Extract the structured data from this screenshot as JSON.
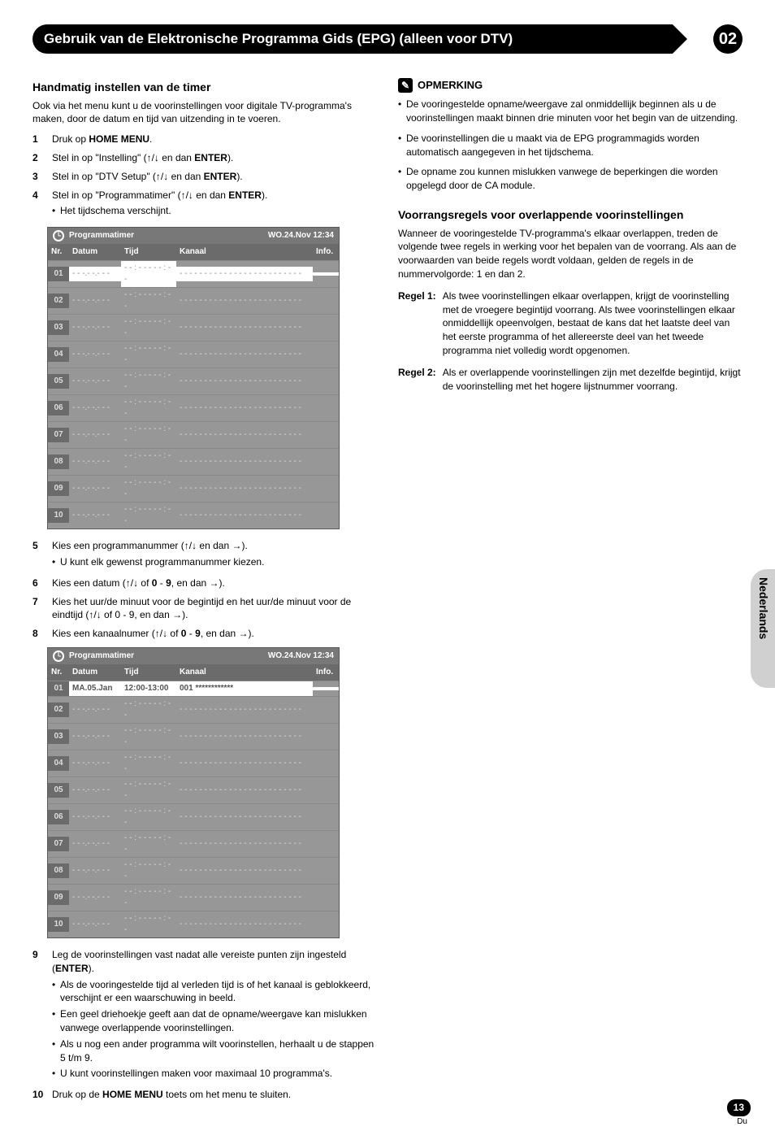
{
  "header": {
    "title": "Gebruik van de Elektronische Programma Gids (EPG) (alleen voor DTV)",
    "chapter": "02"
  },
  "side_tab": "Nederlands",
  "page_number": "13",
  "page_lang_code": "Du",
  "left": {
    "h1": "Handmatig instellen van de timer",
    "intro": "Ook via het menu kunt u de voorinstellingen voor digitale TV-programma's maken, door de datum en tijd van uitzending in te voeren.",
    "step1": "Druk op HOME MENU.",
    "step2": "Stel in op \"Instelling\" (↑/↓ en dan ENTER).",
    "step3": "Stel in op \"DTV Setup\" (↑/↓ en dan ENTER).",
    "step4": "Stel in op \"Programmatimer\" (↑/↓ en dan ENTER).",
    "step4_sub": "Het tijdschema verschijnt.",
    "step5": "Kies een programmanummer (↑/↓ en dan →).",
    "step5_sub": "U kunt elk gewenst programmanummer kiezen.",
    "step6": "Kies een datum (↑/↓ of 0 - 9, en dan →).",
    "step7": "Kies het uur/de minuut voor de begintijd en het uur/de minuut voor de eindtijd (↑/↓ of 0 - 9, en dan →).",
    "step8": "Kies een kanaalnumer (↑/↓ of 0 - 9, en dan →).",
    "step9": "Leg de voorinstellingen vast nadat alle vereiste punten zijn ingesteld (ENTER).",
    "step9_sub1": "Als de vooringestelde tijd al verleden tijd is of het kanaal is geblokkeerd, verschijnt er een waarschuwing in beeld.",
    "step9_sub2": "Een geel driehoekje geeft aan dat de opname/weergave kan mislukken vanwege overlappende voorinstellingen.",
    "step9_sub3": "Als u nog een ander programma wilt voorinstellen, herhaalt u de stappen 5 t/m 9.",
    "step9_sub4": "U kunt voorinstellingen maken voor maximaal 10 programma's.",
    "step10": "Druk op de HOME MENU toets om het menu te sluiten."
  },
  "right": {
    "note_label": "OPMERKING",
    "note1": "De vooringestelde opname/weergave zal onmiddellijk beginnen als u de voorinstellingen maakt binnen drie minuten voor het begin van de uitzending.",
    "note2": "De voorinstellingen die u maakt via de EPG programmagids worden automatisch aangegeven in het tijdschema.",
    "note3": "De opname zou kunnen mislukken vanwege de beperkingen die worden opgelegd door de CA module.",
    "h2": "Voorrangsregels voor overlappende voorinstellingen",
    "h2_body": "Wanneer de vooringestelde TV-programma's elkaar overlappen, treden de volgende twee regels in werking voor het bepalen van de voorrang. Als aan de voorwaarden van beide regels wordt voldaan, gelden de regels in de nummervolgorde: 1 en dan 2.",
    "r1_label": "Regel 1:",
    "r1": "Als twee voorinstellingen elkaar overlappen, krijgt de voorinstelling met de vroegere begintijd voorrang. Als twee voorinstellingen elkaar onmiddellijk opeenvolgen, bestaat de kans dat het laatste deel van het eerste programma of het allereerste deel van het tweede programma niet volledig wordt opgenomen.",
    "r2_label": "Regel 2:",
    "r2": "Als er overlappende voorinstellingen zijn met dezelfde begintijd, krijgt de voorinstelling met het hogere lijstnummer voorrang."
  },
  "table": {
    "title": "Programmatimer",
    "datetime": "WO.24.Nov 12:34",
    "cols": {
      "nr": "Nr.",
      "datum": "Datum",
      "tijd": "Tijd",
      "kanaal": "Kanaal",
      "info": "Info."
    },
    "placeholder": {
      "datum": "- - -.- -.- - -",
      "tijd": "- - : - - - - - : - -",
      "kanaal": "- - -  - - - - - - - - - - - - - - - - - - - - - -"
    },
    "filled": {
      "datum": "MA.05.Jan",
      "tijd": "12:00-13:00",
      "kanaal": "001 ************"
    }
  }
}
